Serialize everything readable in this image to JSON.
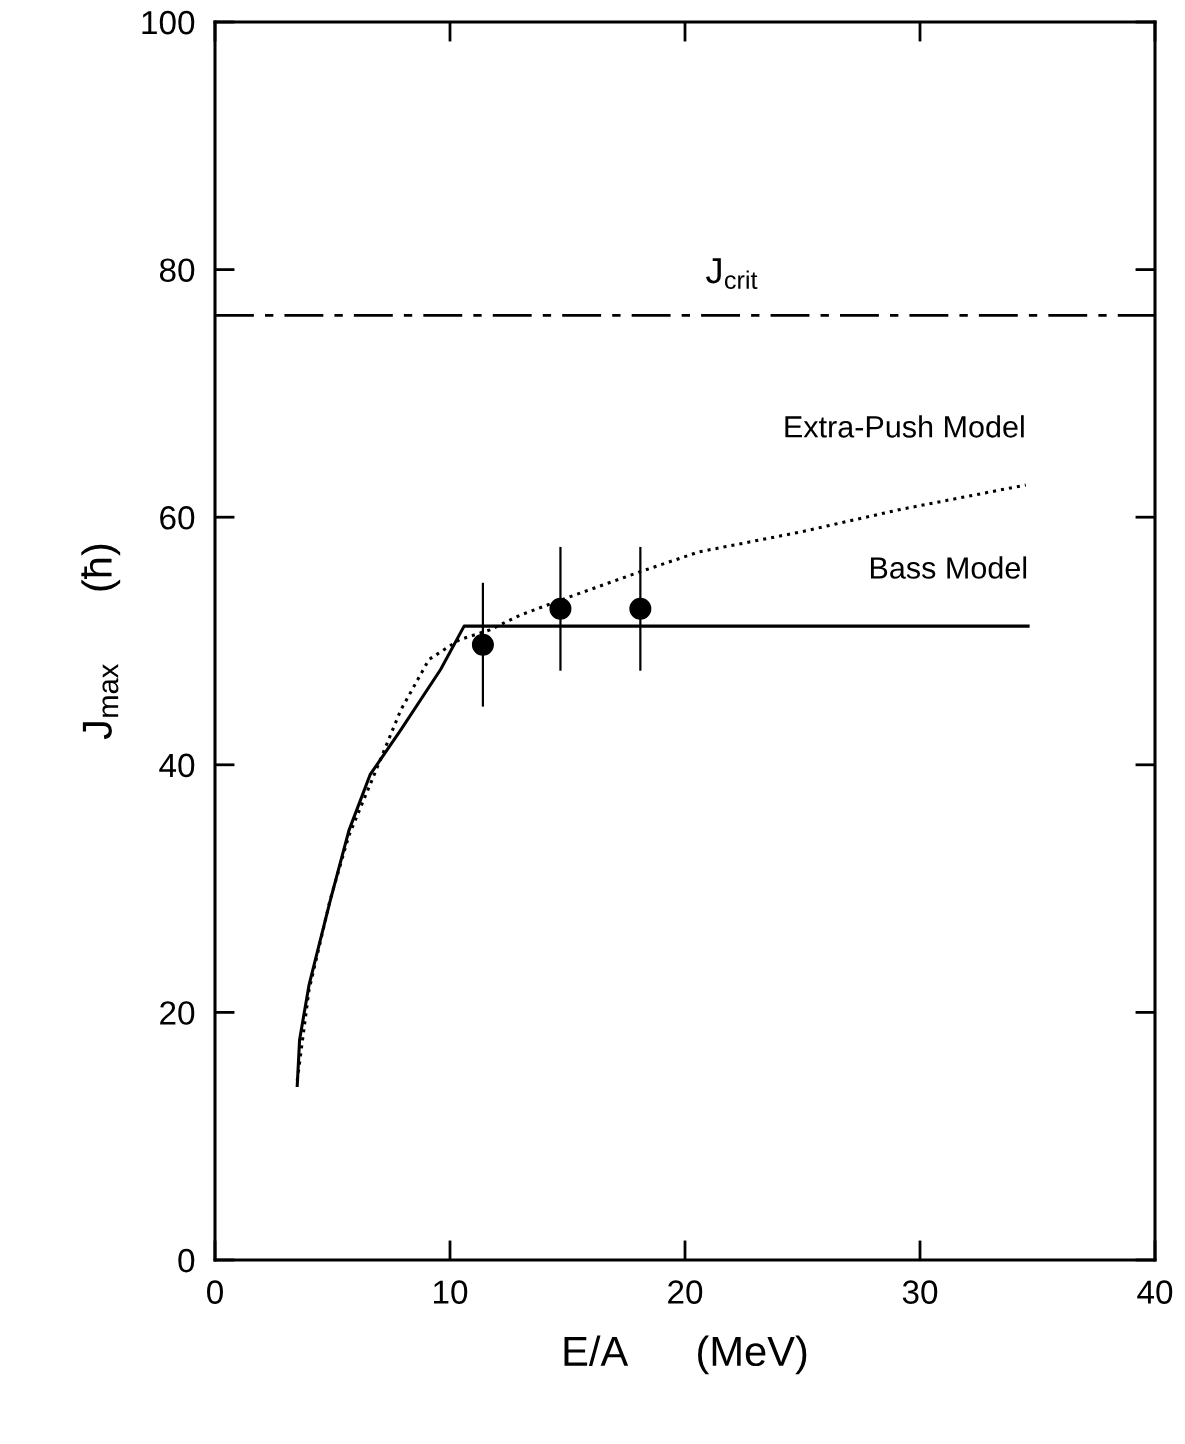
{
  "chart_data": {
    "type": "line",
    "xlabel": "E/A      (MeV)",
    "ylabel": "J$_{max}$      (ħ)",
    "xlim": [
      0,
      40
    ],
    "ylim": [
      0,
      100
    ],
    "xticks": [
      0,
      10,
      20,
      30,
      40
    ],
    "yticks": [
      0,
      20,
      40,
      60,
      80,
      100
    ],
    "grid": false,
    "legend": false,
    "series": [
      {
        "name": "Bass Model",
        "line_style": "solid",
        "color": "#000000",
        "x": [
          3.5,
          3.6,
          4.0,
          4.9,
          5.7,
          6.6,
          7.9,
          9.6,
          10.6,
          34.6
        ],
        "values": [
          14.1,
          17.8,
          22.2,
          29.0,
          34.7,
          39.2,
          42.8,
          47.7,
          51.2,
          51.2
        ]
      },
      {
        "name": "Extra-Push Model",
        "type": "line",
        "line_style": "dotted",
        "color": "#000000",
        "x": [
          3.5,
          4.0,
          4.9,
          5.7,
          6.6,
          7.9,
          9.1,
          10.4,
          11.7,
          13.0,
          14.7,
          18.1,
          20.6,
          24.9,
          29.1,
          34.5
        ],
        "values": [
          14.5,
          21.8,
          29.1,
          34.3,
          38.4,
          44.4,
          48.5,
          50.1,
          50.9,
          52.1,
          53.3,
          55.6,
          57.2,
          58.8,
          60.6,
          62.6
        ]
      },
      {
        "type": "scatter",
        "marker": "circle",
        "color": "#000000",
        "x": [
          11.4,
          14.7,
          18.1
        ],
        "values": [
          49.7,
          52.6,
          52.6
        ],
        "errors": [
          5,
          5,
          5
        ]
      }
    ],
    "ref_lines": [
      {
        "axis": "y",
        "value": 76.3,
        "label": "J$_{crit}$",
        "line_style": "dashdot",
        "color": "#000000"
      }
    ]
  }
}
